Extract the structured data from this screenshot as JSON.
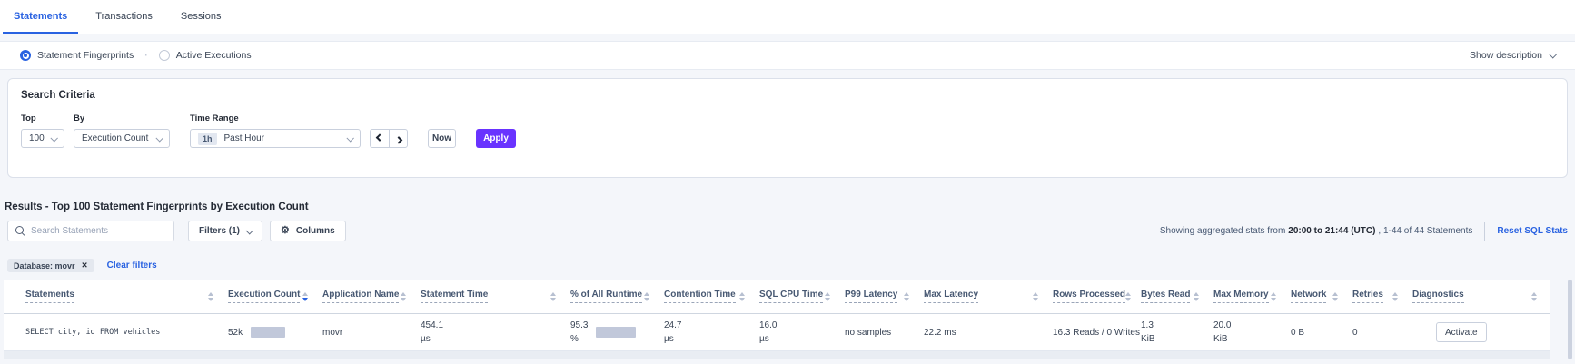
{
  "icons": {
    "gear": "⚙",
    "close": "✕",
    "separator": "·"
  },
  "tabs": {
    "statements": "Statements",
    "transactions": "Transactions",
    "sessions": "Sessions"
  },
  "view_toggle": {
    "statement_fingerprints": "Statement Fingerprints",
    "active_executions": "Active Executions",
    "show_description": "Show description"
  },
  "search_criteria": {
    "title": "Search Criteria",
    "top_label": "Top",
    "top_value": "100",
    "by_label": "By",
    "by_value": "Execution Count",
    "time_range_label": "Time Range",
    "time_range_badge": "1h",
    "time_range_value": "Past Hour",
    "now_label": "Now",
    "apply_label": "Apply"
  },
  "results": {
    "title": "Results - Top 100 Statement Fingerprints by Execution Count",
    "search_placeholder": "Search Statements",
    "filters_label": "Filters (1)",
    "columns_label": "Columns",
    "stats_prefix": "Showing aggregated stats from",
    "stats_range": "20:00 to 21:44 (UTC)",
    "stats_suffix": ", 1-44 of 44 Statements",
    "reset_label": "Reset SQL Stats",
    "filter_chip_label": "Database: movr",
    "clear_filters_label": "Clear filters"
  },
  "table": {
    "columns": [
      "Statements",
      "Execution Count",
      "Application Name",
      "Statement Time",
      "% of All Runtime",
      "Contention Time",
      "SQL CPU Time",
      "P99 Latency",
      "Max Latency",
      "Rows Processed",
      "Bytes Read",
      "Max Memory",
      "Network",
      "Retries",
      "Diagnostics"
    ],
    "sorted_column": "Execution Count",
    "row": {
      "statement": "SELECT city, id FROM vehicles",
      "execution_count": "52k",
      "application_name": "movr",
      "statement_time_value": "454.1",
      "statement_time_unit": "µs",
      "pct_runtime_value": "95.3",
      "pct_runtime_unit": "%",
      "contention_time_value": "24.7",
      "contention_time_unit": "µs",
      "sql_cpu_time_value": "16.0",
      "sql_cpu_time_unit": "µs",
      "p99_latency": "no samples",
      "max_latency": "22.2 ms",
      "rows_processed": "16.3 Reads / 0 Writes",
      "bytes_read_value": "1.3",
      "bytes_read_unit": "KiB",
      "max_memory_value": "20.0",
      "max_memory_unit": "KiB",
      "network": "0 B",
      "retries": "0",
      "diagnostics_action": "Activate"
    }
  }
}
